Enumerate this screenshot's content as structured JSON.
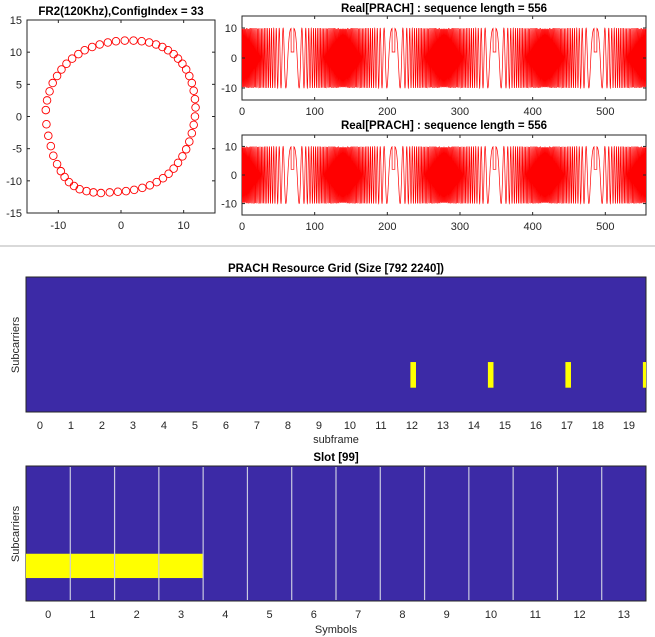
{
  "colors": {
    "marker": "#ff0000",
    "grid_bg": "#3c2aa6",
    "grid_hi": "#ffff00",
    "slot_line": "#c9c9e0",
    "axis": "#262626",
    "divider": "#d9d9d9"
  },
  "chart_data": [
    {
      "type": "scatter",
      "title": "FR2(120Khz),ConfigIndex = 33",
      "marker": "circle",
      "xlim": [
        -15,
        15
      ],
      "ylim": [
        -15,
        15
      ],
      "xticks": [
        "-10",
        "0",
        "10"
      ],
      "yticks": [
        "15",
        "10",
        "5",
        "0",
        "-5",
        "-10",
        "-15"
      ],
      "x": [
        -11.9,
        -11.6,
        -11.2,
        -10.8,
        -10.2,
        -9.6,
        -9.0,
        -8.3,
        -7.5,
        -6.6,
        -5.5,
        -4.4,
        -3.2,
        -1.8,
        -0.5,
        0.8,
        2.1,
        3.4,
        4.6,
        5.7,
        6.7,
        7.6,
        8.4,
        9.1,
        9.8,
        10.4,
        10.9,
        11.3,
        11.6,
        11.8,
        11.9,
        11.8,
        11.6,
        11.3,
        10.9,
        10.4,
        9.8,
        9.1,
        8.4,
        7.5,
        6.6,
        5.6,
        4.5,
        3.3,
        2.0,
        0.6,
        -0.8,
        -2.1,
        -3.4,
        -4.6,
        -5.8,
        -6.8,
        -7.8,
        -8.7,
        -9.5,
        -10.2,
        -10.9,
        -11.4,
        -11.8,
        -12.0
      ],
      "y": [
        -1.2,
        -3.0,
        -4.6,
        -6.1,
        -7.4,
        -8.5,
        -9.4,
        -10.2,
        -10.8,
        -11.3,
        -11.6,
        -11.8,
        -11.9,
        -11.8,
        -11.7,
        -11.6,
        -11.4,
        -11.1,
        -10.7,
        -10.2,
        -9.6,
        -8.9,
        -8.1,
        -7.2,
        -6.2,
        -5.1,
        -3.9,
        -2.6,
        -1.3,
        0.0,
        1.4,
        2.7,
        4.0,
        5.2,
        6.3,
        7.3,
        8.2,
        9.0,
        9.7,
        10.3,
        10.8,
        11.2,
        11.5,
        11.7,
        11.8,
        11.8,
        11.7,
        11.5,
        11.2,
        10.8,
        10.3,
        9.7,
        9.0,
        8.2,
        7.3,
        6.3,
        5.2,
        3.9,
        2.5,
        1.0
      ]
    },
    {
      "type": "line",
      "title": "Real[PRACH] : sequence length = 556",
      "xlim": [
        0,
        556
      ],
      "ylim": [
        -14,
        14
      ],
      "xticks": [
        "0",
        "100",
        "200",
        "300",
        "400",
        "500"
      ],
      "yticks": [
        "10",
        "0",
        "-10"
      ],
      "amplitude": 10,
      "periods": 4,
      "period_length": 139
    },
    {
      "type": "line",
      "title": "Real[PRACH] : sequence length = 556",
      "xlim": [
        0,
        556
      ],
      "ylim": [
        -14,
        14
      ],
      "xticks": [
        "0",
        "100",
        "200",
        "300",
        "400",
        "500"
      ],
      "yticks": [
        "10",
        "0",
        "-10"
      ],
      "amplitude": 10,
      "periods": 4,
      "period_length": 139
    },
    {
      "type": "heatmap",
      "title": "PRACH Resource Grid (Size [792 2240])",
      "xlabel": "subframe",
      "ylabel": "Subcarriers",
      "xlim": [
        -0.45,
        19.55
      ],
      "xticks": [
        "0",
        "1",
        "2",
        "3",
        "4",
        "5",
        "6",
        "7",
        "8",
        "9",
        "10",
        "11",
        "12",
        "13",
        "14",
        "15",
        "16",
        "17",
        "18",
        "19"
      ],
      "ylim": [
        0,
        1
      ],
      "highlights": [
        {
          "x": 11.95,
          "width": 0.18,
          "y0": 0.18,
          "y1": 0.37
        },
        {
          "x": 14.45,
          "width": 0.18,
          "y0": 0.18,
          "y1": 0.37
        },
        {
          "x": 16.95,
          "width": 0.18,
          "y0": 0.18,
          "y1": 0.37
        },
        {
          "x": 19.45,
          "width": 0.18,
          "y0": 0.18,
          "y1": 0.37
        }
      ]
    },
    {
      "type": "heatmap",
      "title": "Slot [99]",
      "xlabel": "Symbols",
      "ylabel": "Subcarriers",
      "xlim": [
        -0.5,
        13.5
      ],
      "xticks": [
        "0",
        "1",
        "2",
        "3",
        "4",
        "5",
        "6",
        "7",
        "8",
        "9",
        "10",
        "11",
        "12",
        "13"
      ],
      "ylim": [
        0,
        1
      ],
      "slot_lines": [
        0.5,
        1.5,
        2.5,
        3.5,
        4.5,
        5.5,
        6.5,
        7.5,
        8.5,
        9.5,
        10.5,
        11.5,
        12.5
      ],
      "highlights": [
        {
          "x0": -0.5,
          "x1": 3.5,
          "y0": 0.17,
          "y1": 0.35
        }
      ]
    }
  ]
}
